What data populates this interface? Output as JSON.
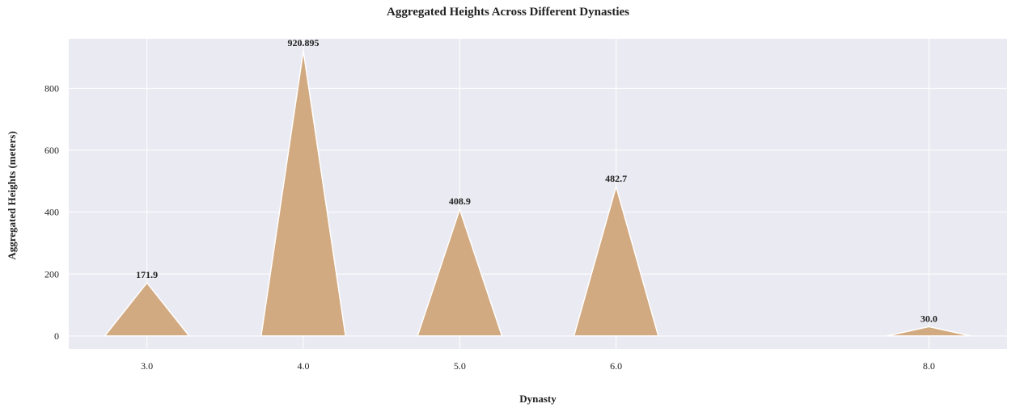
{
  "chart_data": {
    "type": "area",
    "title": "Aggregated Heights Across Different Dynasties",
    "xlabel": "Dynasty",
    "ylabel": "Aggregated Heights (meters)",
    "categories": [
      "3.0",
      "4.0",
      "5.0",
      "6.0",
      "8.0"
    ],
    "values": [
      171.9,
      920.895,
      408.9,
      482.7,
      30.0
    ],
    "data_labels": [
      "171.9",
      "920.895",
      "408.9",
      "482.7",
      "30.0"
    ],
    "yticks": [
      0,
      200,
      400,
      600,
      800
    ],
    "ylim": [
      -42,
      960
    ],
    "grid": true,
    "colors": {
      "fill": "#d2aa82",
      "edge": "#ffffff",
      "plot_background": "#eaeaf2",
      "grid": "#ffffff"
    }
  }
}
